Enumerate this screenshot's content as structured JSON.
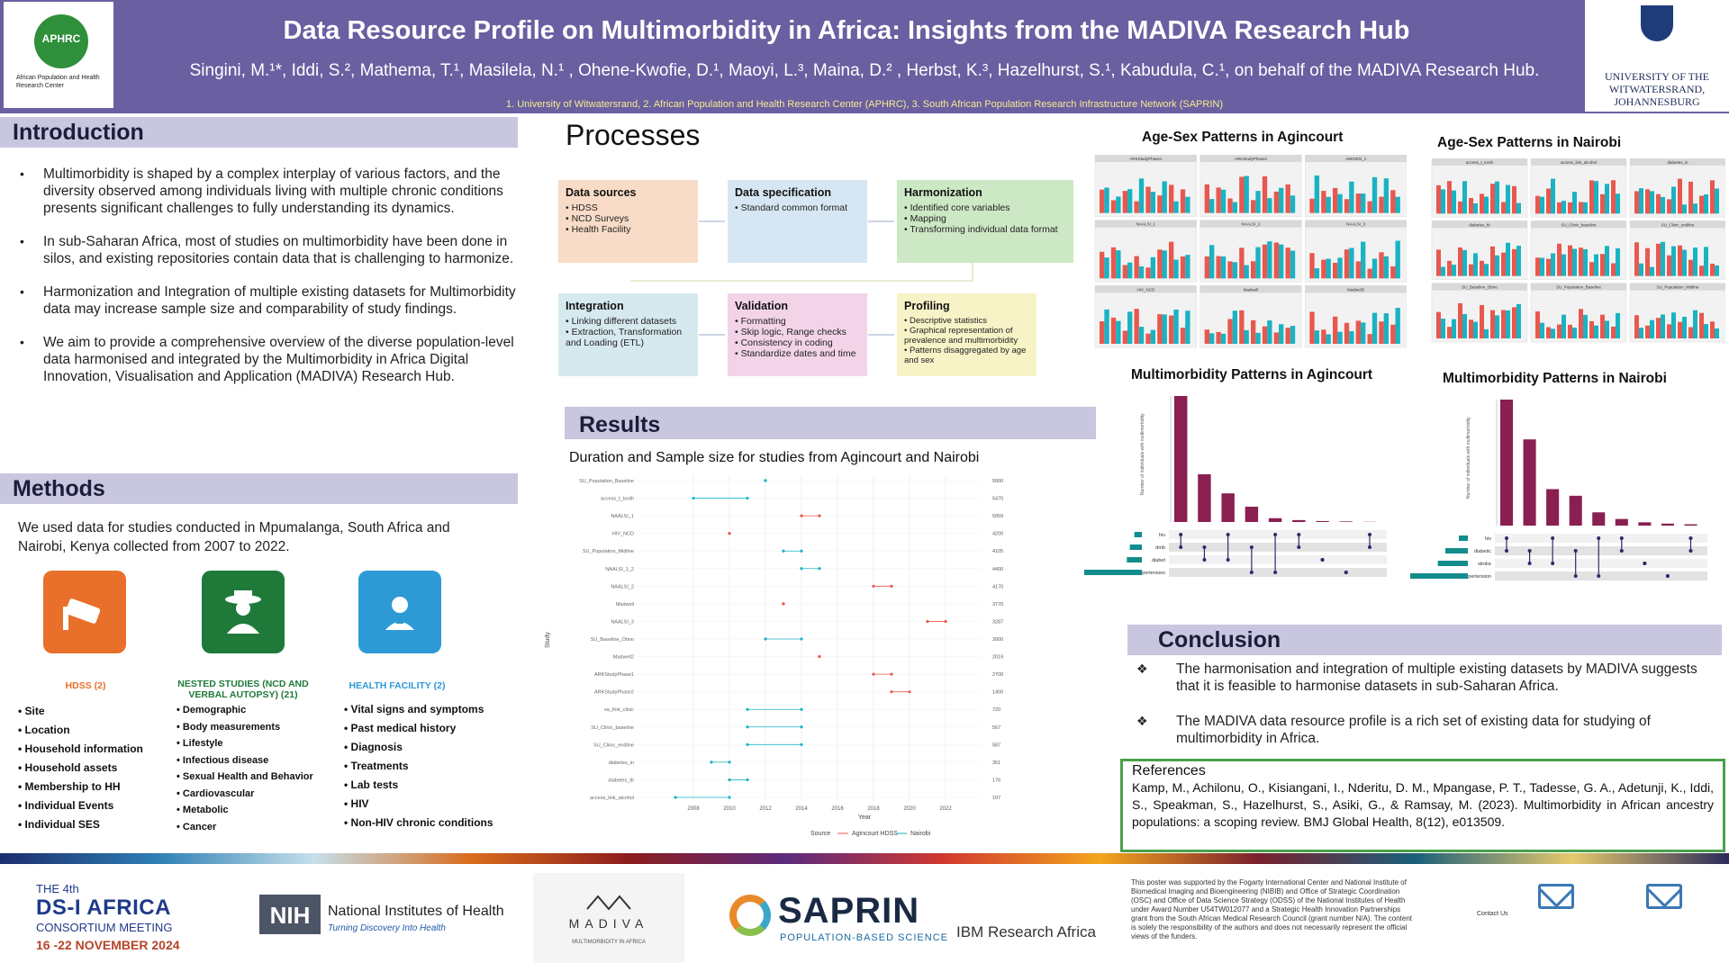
{
  "header": {
    "title": "Data Resource Profile on Multimorbidity in Africa: Insights from the MADIVA Research Hub",
    "authors": "Singini, M.¹*, Iddi, S.², Mathema, T.¹, Masilela, N.¹ , Ohene-Kwofie, D.¹, Maoyi, L.³, Maina, D.² , Herbst, K.³, Hazelhurst, S.¹, Kabudula, C.¹, on behalf of the MADIVA Research Hub.",
    "affiliations": "1. University of Witwatersrand, 2. African Population and Health Research Center (APHRC), 3. South African Population Research Infrastructure Network (SAPRIN)",
    "left_logo_text": "APHRC",
    "left_logo_sub": "African Population and Health Research Center",
    "right_logo_text": "UNIVERSITY OF THE WITWATERSRAND, JOHANNESBURG"
  },
  "introduction": {
    "heading": "Introduction",
    "bullets": [
      "Multimorbidity is shaped by a complex interplay of various factors, and the diversity observed among individuals living with multiple chronic conditions presents significant challenges to fully understanding its dynamics.",
      "In sub-Saharan Africa, most of studies on multimorbidity have been done in silos, and existing repositories contain data that is challenging to harmonize.",
      "Harmonization and Integration of multiple existing datasets for Multimorbidity data may increase sample size and comparability of study findings.",
      "We aim to provide a comprehensive overview of the diverse population-level data harmonised and integrated by the Multimorbidity in Africa Digital Innovation, Visualisation and Application (MADIVA) Research Hub."
    ]
  },
  "methods": {
    "heading": "Methods",
    "text": "We used data for studies conducted in Mpumalanga, South Africa and Nairobi, Kenya collected from 2007 to 2022.",
    "cards": [
      {
        "title": "HDSS (2)",
        "color": "#e8702a",
        "items": [
          "Site",
          "Location",
          "Household information",
          "Household assets",
          "Membership to HH",
          "Individual Events",
          "Individual SES"
        ]
      },
      {
        "title": "NESTED STUDIES (NCD AND VERBAL AUTOPSY) (21)",
        "color": "#1f7a3a",
        "items": [
          "Demographic",
          "Body measurements",
          "Lifestyle",
          "Infectious disease",
          "Sexual Health and Behavior",
          "Cardiovascular",
          "Metabolic",
          "Cancer"
        ]
      },
      {
        "title": "HEALTH FACILITY (2)",
        "color": "#2d9ad6",
        "items": [
          "Vital signs and symptoms",
          "Past medical history",
          "Diagnosis",
          "Treatments",
          "Lab tests",
          "HIV",
          "Non-HIV chronic conditions"
        ]
      }
    ]
  },
  "processes": {
    "heading": "Processes",
    "boxes": [
      {
        "title": "Data sources",
        "color": "#f9dcc7",
        "items": [
          "HDSS",
          "NCD Surveys",
          "Health Facility"
        ]
      },
      {
        "title": "Data specification",
        "color": "#d6e7f3",
        "items": [
          "Standard common format"
        ]
      },
      {
        "title": "Harmonization",
        "color": "#cde8c4",
        "items": [
          "Identified core variables",
          "Mapping",
          "Transforming individual data format"
        ]
      },
      {
        "title": "Integration",
        "color": "#d6e9ef",
        "items": [
          "Linking different datasets",
          "Extraction, Transformation and Loading (ETL)"
        ]
      },
      {
        "title": "Validation",
        "color": "#f2d3e8",
        "items": [
          "Formatting",
          "Skip logic, Range checks",
          "Consistency in coding",
          "Standardize dates and time"
        ]
      },
      {
        "title": "Profiling",
        "color": "#f7f3c7",
        "items": [
          "Descriptive statistics",
          "Graphical representation of prevalence and multimorbidity",
          "Patterns disaggregated by age and sex"
        ]
      }
    ]
  },
  "results": {
    "heading": "Results",
    "dot_title": "Duration and Sample size for studies from Agincourt  and Nairobi",
    "dot_xlabel": "Year",
    "dot_ylabel": "Study",
    "legend_label": "Source",
    "legend_items": [
      "Agincourt HDSS",
      "Nairobi"
    ]
  },
  "chart_data": [
    {
      "type": "scatter",
      "title": "Duration and Sample size for studies from Agincourt  and Nairobi",
      "xlabel": "Year",
      "ylabel": "Study",
      "xlim": [
        2005,
        2023
      ],
      "x_ticks": [
        2008,
        2010,
        2012,
        2014,
        2016,
        2018,
        2020,
        2022
      ],
      "studies": [
        {
          "name": "SU_Population_Baseline",
          "source": "Nairobi",
          "start": 2012,
          "end": 2012,
          "n": "5000"
        },
        {
          "name": "access_t_tooth",
          "source": "Nairobi",
          "start": 2008,
          "end": 2011,
          "n": "5470"
        },
        {
          "name": "NAALSI_1",
          "source": "Agincourt HDSS",
          "start": 2014,
          "end": 2015,
          "n": "5059"
        },
        {
          "name": "HIV_NCD",
          "source": "Agincourt HDSS",
          "start": 2010,
          "end": 2010,
          "n": "4200"
        },
        {
          "name": "SU_Population_Midline",
          "source": "Nairobi",
          "start": 2013,
          "end": 2014,
          "n": "4105"
        },
        {
          "name": "NAALSI_1_2",
          "source": "Nairobi",
          "start": 2014,
          "end": 2015,
          "n": "4400"
        },
        {
          "name": "NAALSI_2",
          "source": "Agincourt HDSS",
          "start": 2018,
          "end": 2019,
          "n": "4170"
        },
        {
          "name": "Madwell",
          "source": "Agincourt HDSS",
          "start": 2013,
          "end": 2013,
          "n": "3770"
        },
        {
          "name": "NAALSI_3",
          "source": "Agincourt HDSS",
          "start": 2021,
          "end": 2022,
          "n": "3287"
        },
        {
          "name": "SU_Baseline_Obno",
          "source": "Nairobi",
          "start": 2012,
          "end": 2014,
          "n": "3000"
        },
        {
          "name": "Madwell2",
          "source": "Agincourt HDSS",
          "start": 2015,
          "end": 2015,
          "n": "2019"
        },
        {
          "name": "ARKStudyPhase1",
          "source": "Agincourt HDSS",
          "start": 2018,
          "end": 2019,
          "n": "2700"
        },
        {
          "name": "ARKStudyPhase2",
          "source": "Agincourt HDSS",
          "start": 2019,
          "end": 2020,
          "n": "1400"
        },
        {
          "name": "sa_first_clinic",
          "source": "Nairobi",
          "start": 2011,
          "end": 2014,
          "n": "720"
        },
        {
          "name": "SU_Clinic_baseline",
          "source": "Nairobi",
          "start": 2011,
          "end": 2014,
          "n": "567"
        },
        {
          "name": "SU_Clinic_endline",
          "source": "Nairobi",
          "start": 2011,
          "end": 2014,
          "n": "587"
        },
        {
          "name": "diabetes_in",
          "source": "Nairobi",
          "start": 2009,
          "end": 2010,
          "n": "351"
        },
        {
          "name": "diabetes_tb",
          "source": "Nairobi",
          "start": 2010,
          "end": 2011,
          "n": "176"
        },
        {
          "name": "access_link_alcohol",
          "source": "Nairobi",
          "start": 2007,
          "end": 2010,
          "n": "107"
        }
      ]
    },
    {
      "type": "bar",
      "title": "Multimorbidity Patterns in Agincourt",
      "ylabel": "Number of individuals with multimorbidity",
      "values": [
        660,
        250,
        150,
        80,
        20,
        10,
        5,
        3,
        1
      ],
      "conditions": [
        "hiv",
        "dmb",
        "diabet",
        "hypertension"
      ],
      "set_sizes": [
        150,
        240,
        300,
        1260
      ]
    },
    {
      "type": "bar",
      "title": "Multimorbidity Patterns in Nairobi",
      "ylabel": "Number of individuals with multimorbidity",
      "values": [
        190,
        130,
        55,
        45,
        20,
        10,
        5,
        3,
        2
      ],
      "conditions": [
        "hiv",
        "diabetic",
        "stroke",
        "hypertension"
      ],
      "set_sizes": [
        60,
        150,
        200,
        420
      ]
    }
  ],
  "figures": {
    "agincourt_age_sex": "Age-Sex Patterns in Agincourt",
    "nairobi_age_sex": "Age-Sex Patterns in Nairobi",
    "agincourt_mm": "Multimorbidity Patterns in Agincourt",
    "nairobi_mm": "Multimorbidity Patterns in Nairobi",
    "agincourt_panels": [
      "ARKStudyPhase1",
      "ARKStudyPhase2",
      "AWIGEN_1",
      "NAALSI_1",
      "NAALSI_2",
      "NAALSI_3",
      "HIV_NCD",
      "Madwell",
      "Madwell2"
    ],
    "nairobi_panels": [
      "access_t_tooth",
      "access_link_alcohol",
      "diabetes_in",
      "diabetes_tb",
      "SU_Clinic_baseline",
      "SU_Clinic_endline",
      "SU_Baseline_Obno",
      "SU_Population_Baseline",
      "SU_Population_Midline"
    ],
    "colors": {
      "female": "#e8584f",
      "male": "#19b3c2",
      "bar": "#8a1f52"
    }
  },
  "conclusion": {
    "heading": "Conclusion",
    "bullets": [
      "The harmonisation and integration of  multiple existing datasets by MADIVA suggests that  it is feasible to harmonise datasets in sub-Saharan Africa.",
      "The MADIVA  data resource profile is a rich set of existing data for studying of multimorbidity in Africa."
    ]
  },
  "references": {
    "heading": "References",
    "text": "Kamp, M., Achilonu, O., Kisiangani, I., Nderitu, D. M., Mpangase, P. T., Tadesse, G. A., Adetunji, K., Iddi, S., Speakman, S., Hazelhurst, S., Asiki, G., & Ramsay, M. (2023). Multimorbidity in African ancestry populations: a scoping review. BMJ Global Health, 8(12), e013509."
  },
  "footer": {
    "dsi_line1": "THE 4th",
    "dsi_line2": "DS-I AFRICA",
    "dsi_line3": "CONSORTIUM MEETING",
    "dsi_dates": "16 -22 NOVEMBER 2024",
    "nih_abbr": "NIH",
    "nih_name": "National Institutes of Health",
    "nih_tag": "Turning Discovery Into Health",
    "madiva_word": "MADIVA",
    "madiva_sub": "MULTIMORBIDITY IN AFRICA",
    "saprin": "SAPRIN",
    "saprin_sub": "POPULATION-BASED SCIENCE",
    "ibm": "IBM Research Africa",
    "disclaimer": "This poster was supported by the Fogarty International Center and National Institute of Biomedical Imaging and Bioengineering (NIBIB) and Office of Strategic Coordination (OSC) and Office of Data Science Strategy (ODSS) of the National Institutes of Health under Award Number U54TW012077 and a Strategic Health Innovation Partnerships grant from the South African Medical Research Council (grant number N/A). The content is solely the responsibility of the authors and does not necessarily represent the official views of the funders.",
    "contact_label": "Contact Us"
  }
}
